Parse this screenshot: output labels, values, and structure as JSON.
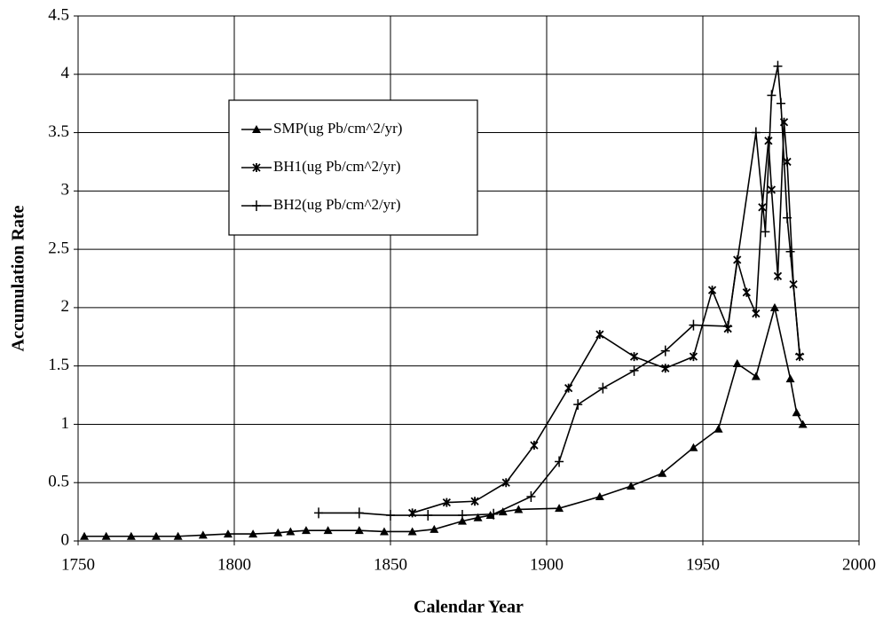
{
  "chart_data": {
    "type": "line",
    "xlabel": "Calendar Year",
    "ylabel": "Accumulation Rate",
    "xlim": [
      1750,
      2000
    ],
    "xticks": [
      1750,
      1800,
      1850,
      1900,
      1950,
      2000
    ],
    "ylim": [
      0,
      4.5
    ],
    "yticks": [
      0,
      0.5,
      1,
      1.5,
      2,
      2.5,
      3,
      3.5,
      4,
      4.5
    ],
    "grid": true,
    "series": [
      {
        "name": "SMP(ug Pb/cm^2/yr)",
        "color": "#000000",
        "marker": "triangle",
        "x": [
          1752,
          1759,
          1767,
          1775,
          1782,
          1790,
          1798,
          1806,
          1814,
          1818,
          1823,
          1830,
          1840,
          1848,
          1857,
          1864,
          1873,
          1878,
          1882,
          1886,
          1891,
          1904,
          1917,
          1927,
          1937,
          1947,
          1955,
          1961,
          1967,
          1973,
          1978,
          1980,
          1982
        ],
        "values": [
          0.04,
          0.04,
          0.04,
          0.04,
          0.04,
          0.05,
          0.06,
          0.06,
          0.07,
          0.08,
          0.09,
          0.09,
          0.09,
          0.08,
          0.08,
          0.1,
          0.17,
          0.2,
          0.22,
          0.25,
          0.27,
          0.28,
          0.38,
          0.47,
          0.58,
          0.8,
          0.96,
          1.52,
          1.41,
          2.0,
          1.39,
          1.1,
          1.0
        ]
      },
      {
        "name": "BH1(ug Pb/cm^2/yr)",
        "color": "#000000",
        "marker": "star",
        "x": [
          1857,
          1868,
          1877,
          1887,
          1896,
          1907,
          1917,
          1928,
          1938,
          1947,
          1953,
          1958,
          1961,
          1964,
          1967,
          1969,
          1971,
          1972,
          1974,
          1976,
          1977,
          1979,
          1981
        ],
        "values": [
          0.24,
          0.33,
          0.34,
          0.5,
          0.82,
          1.31,
          1.77,
          1.58,
          1.48,
          1.58,
          2.15,
          1.82,
          2.41,
          2.13,
          1.95,
          2.86,
          3.43,
          3.01,
          2.27,
          3.59,
          3.25,
          2.2,
          1.58
        ]
      },
      {
        "name": "BH2(ug Pb/cm^2/yr)",
        "color": "#000000",
        "marker": "plus",
        "x": [
          1827,
          1840,
          1850,
          1862,
          1873,
          1883,
          1895,
          1904,
          1910,
          1918,
          1928,
          1938,
          1947,
          1958,
          1967,
          1970,
          1972,
          1974,
          1975,
          1977,
          1978,
          1981
        ],
        "values": [
          0.24,
          0.24,
          0.22,
          0.22,
          0.22,
          0.23,
          0.38,
          0.68,
          1.17,
          1.31,
          1.46,
          1.63,
          1.85,
          1.84,
          3.5,
          2.65,
          3.82,
          4.07,
          3.75,
          2.77,
          2.48,
          1.6
        ]
      }
    ]
  }
}
